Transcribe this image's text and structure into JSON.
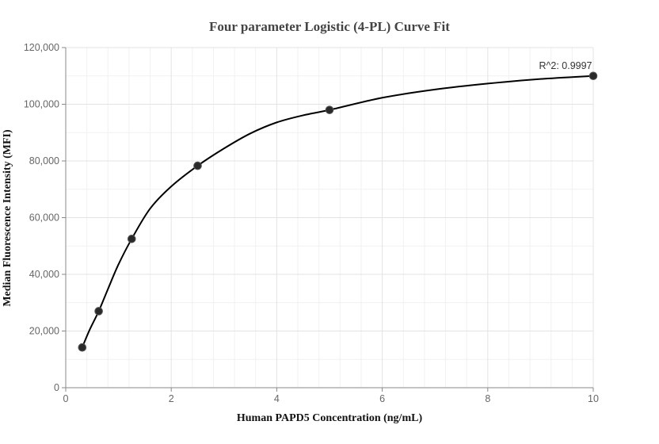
{
  "chart_data": {
    "type": "scatter",
    "title": "Four parameter Logistic (4-PL) Curve Fit",
    "xlabel": "Human PAPD5 Concentration (ng/mL)",
    "ylabel": "Median Fluorescence Intensity (MFI)",
    "xlim": [
      0,
      10
    ],
    "ylim": [
      0,
      120000
    ],
    "x_ticks": [
      "0",
      "2",
      "4",
      "6",
      "8",
      "10"
    ],
    "y_ticks": [
      "0",
      "20,000",
      "40,000",
      "60,000",
      "80,000",
      "100,000",
      "120,000"
    ],
    "grid": true,
    "series": [
      {
        "x": [
          0.3125,
          0.625,
          1.25,
          2.5,
          5,
          10
        ],
        "y": [
          14200,
          27000,
          52500,
          78300,
          98000,
          110000
        ]
      }
    ],
    "fit_curve": {
      "x": [
        0.3125,
        0.45,
        0.625,
        0.8,
        1.0,
        1.25,
        1.6,
        2.0,
        2.5,
        3.0,
        3.5,
        4.0,
        4.5,
        5.0,
        6.0,
        7.0,
        8.0,
        9.0,
        10.0
      ],
      "y": [
        14200,
        20300,
        27000,
        34800,
        43500,
        52500,
        63200,
        71000,
        78300,
        84400,
        89700,
        93600,
        96100,
        98000,
        102300,
        105200,
        107300,
        108900,
        110000
      ]
    },
    "annotations": [
      "R^2: 0.9997"
    ]
  }
}
